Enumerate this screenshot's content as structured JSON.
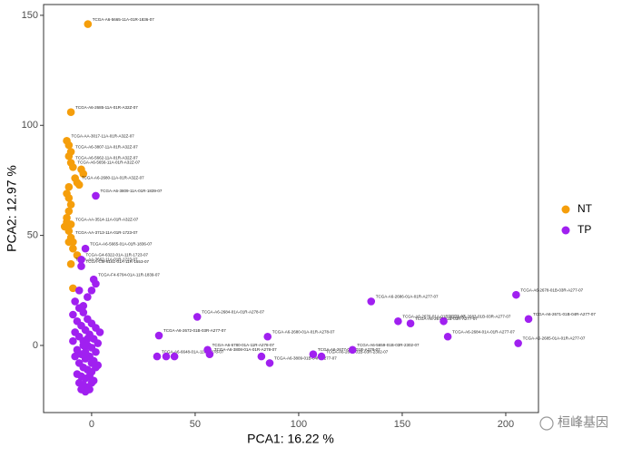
{
  "chart_data": {
    "type": "scatter",
    "xlabel": "PCA1: 16.22 %",
    "ylabel": "PCA2: 12.97 %",
    "xlim": [
      -23.2,
      215.8
    ],
    "ylim": [
      -30.5,
      154.9
    ],
    "xticks": [
      0,
      50,
      100,
      150,
      200
    ],
    "yticks": [
      0,
      50,
      100,
      150
    ],
    "grid": false,
    "legend": "right",
    "watermark": "桓峰基因",
    "series": [
      {
        "name": "NT",
        "color": "#f59e0b",
        "x": [
          -1.8,
          -10,
          -12,
          -11,
          -10,
          -11,
          -10,
          -9,
          -5,
          -4,
          -7,
          -11,
          -12,
          -11,
          -10,
          -11,
          -12,
          -10,
          -11,
          -10,
          -9,
          -9,
          -7,
          -10,
          -9,
          -12,
          -8,
          -6,
          -13,
          -11
        ],
        "values": [
          146,
          106,
          93,
          91,
          88,
          86,
          83,
          81,
          80,
          78,
          74,
          72,
          69,
          67,
          64,
          61,
          58,
          55,
          52,
          49,
          47,
          44,
          41,
          37,
          26,
          56,
          76,
          73,
          54,
          47
        ],
        "labels": [
          "TCGA-A6-5665-11A-01R-1836-07",
          "TCGA-A6-2685-11A-01R-A32Z-07",
          "TCGA-AA-3017-11A-01R-A32Z-07",
          null,
          "TCGA-A6-3807-11A-01R-A32Z-07",
          null,
          "TCGA-A6-5662-11A-01R-A32Z-07",
          "TCGA-A6-5656-11A-01R-A32Z-07",
          null,
          null,
          "TCGA-A6-2680-11A-01R-A32Z-07",
          null,
          null,
          null,
          null,
          null,
          null,
          "TCGA-AA-3514-11A-01R-A32Z-07",
          null,
          "TCGA-AA-3713-11A-01R-1723-07",
          null,
          null,
          null,
          "TCGA-AA-3662-11A-01R-1723-07",
          null,
          null,
          null,
          null,
          null,
          null
        ]
      },
      {
        "name": "TP",
        "color": "#a020f0",
        "x": [
          2,
          -3,
          -5,
          -5,
          1,
          2,
          0,
          135,
          148,
          154,
          170,
          172,
          205,
          211,
          206,
          32.5,
          31.6,
          36,
          40,
          51,
          56,
          57,
          85,
          86,
          82,
          107,
          111,
          126,
          -8,
          -6,
          -4,
          -2,
          0,
          2,
          4,
          -9,
          -7,
          -5,
          -3,
          -1,
          1,
          3,
          -8,
          -6,
          -4,
          -2,
          0,
          2,
          -9,
          -7,
          -5,
          -3,
          -1,
          1,
          3,
          -8,
          -6,
          -4,
          -2,
          0,
          2,
          -7,
          -5,
          -3,
          -1,
          1,
          -6,
          -4,
          -2,
          0,
          -5,
          -3,
          -1,
          -4,
          -2,
          -6,
          -3,
          0,
          -2,
          -4
        ],
        "values": [
          68,
          44,
          39,
          36,
          30,
          28,
          25,
          20,
          11,
          10,
          11,
          4,
          23,
          12,
          1,
          4.5,
          -5,
          -5,
          -5,
          13,
          -2,
          -4,
          4,
          -8,
          -5,
          -4,
          -5,
          -2,
          20,
          17,
          15,
          12,
          10,
          8,
          6,
          14,
          11,
          9,
          7,
          5,
          3,
          1,
          6,
          4,
          2,
          0,
          -1,
          -3,
          2,
          -2,
          -4,
          -6,
          -5,
          -7,
          -9,
          -5,
          -8,
          -10,
          -11,
          -12,
          -10,
          -13,
          -14,
          -15,
          -14,
          -16,
          -17,
          -18,
          -19,
          -17,
          -20,
          -21,
          -20,
          18,
          22,
          25,
          -3,
          -8,
          3,
          0
        ],
        "labels": [
          "TCGA-A6-3809-11A-01R-1839-07",
          "TCGA-A6-5665-01A-01R-1836-07",
          "TCGA-G4-6322-01A-11R-1723-07",
          "TCGA-CM-6161-01A-11R-1653-07",
          "TCGA-F4-6704-01A-11R-1839-07",
          null,
          null,
          "TCGA-A6-2686-01A-01R-A277-07",
          "TCGA-A6-2676-01A-01R-A277-07",
          "TCGA-A6-2675-01B-03R-A277-07",
          "TCGA-A6-2683-01B-03R-A277-07",
          "TCGA-A6-2684-01A-01R-A277-07",
          "TCGA-A6-2678-01B-03R-A277-07",
          "TCGA-A6-2671-01B-04R-A277-07",
          "TCGA-A6-2685-01A-01R-A277-07",
          "TCGA-A6-2672-01B-03R-A277-07",
          "TCGA-A6-6648-01A-11R-A278-07",
          null,
          null,
          "TCGA-A6-2684-01A-01R-A278-07",
          "TCGA-A6-6780-01A-11R-A278-07",
          "TCGA-A6-3808-01A-01R-A278-07",
          "TCGA-A6-2680-01A-01R-A278-07",
          "TCGA-A6-3809-01B-04R-A277-07",
          null,
          "TCGA-A6-2677-01A-01R-A278-07",
          "TCGA-A6-2679-01B-03R-2302-07",
          "TCGA-A6-5659-01B-03R-2302-07",
          null,
          null,
          null,
          null,
          null,
          null,
          null,
          null,
          null,
          null,
          null,
          null,
          null,
          null,
          null,
          null,
          null,
          null,
          null,
          null,
          null,
          null,
          null,
          null,
          null,
          null,
          null,
          null,
          null,
          null,
          null,
          null,
          null,
          null,
          null,
          null,
          null,
          null,
          null,
          null,
          null,
          null,
          null,
          null,
          null,
          null,
          null,
          null,
          null,
          null,
          null,
          null
        ]
      }
    ]
  }
}
